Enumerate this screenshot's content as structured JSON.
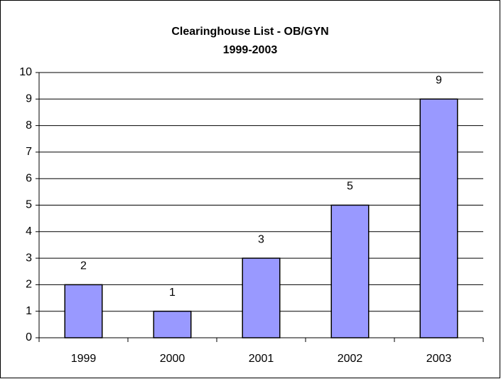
{
  "chart_data": {
    "type": "bar",
    "title": "Clearinghouse List - OB/GYN",
    "subtitle": "1999-2003",
    "categories": [
      "1999",
      "2000",
      "2001",
      "2002",
      "2003"
    ],
    "values": [
      2,
      1,
      3,
      5,
      9
    ],
    "color": "#9999ff",
    "ylim": [
      0,
      10
    ],
    "yticks": [
      0,
      1,
      2,
      3,
      4,
      5,
      6,
      7,
      8,
      9,
      10
    ],
    "grid": true
  }
}
